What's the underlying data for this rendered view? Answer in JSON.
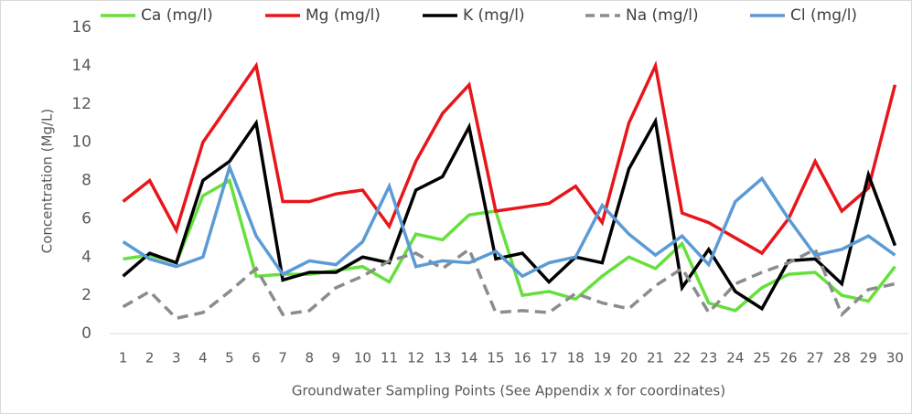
{
  "chart_data": {
    "type": "line",
    "y_label": "Concentration (Mg/L)",
    "x_label": "Groundwater Sampling Points (See Appendix x for coordinates)",
    "categories": [
      "1",
      "2",
      "3",
      "4",
      "5",
      "6",
      "7",
      "8",
      "9",
      "10",
      "11",
      "12",
      "13",
      "14",
      "15",
      "16",
      "17",
      "18",
      "19",
      "20",
      "21",
      "22",
      "23",
      "24",
      "25",
      "26",
      "27",
      "28",
      "29",
      "30"
    ],
    "series": [
      {
        "name": "Ca (mg/l)",
        "color": "#66e03c",
        "dash": false,
        "values": [
          3.9,
          4.1,
          3.7,
          7.2,
          8.0,
          3.0,
          3.1,
          3.1,
          3.3,
          3.5,
          2.7,
          5.2,
          4.9,
          6.2,
          6.4,
          2.0,
          2.2,
          1.8,
          3.0,
          4.0,
          3.4,
          4.7,
          1.6,
          1.2,
          2.4,
          3.1,
          3.2,
          2.0,
          1.7,
          3.5
        ]
      },
      {
        "name": "Mg (mg/l)",
        "color": "#e8161b",
        "dash": false,
        "values": [
          6.9,
          8.0,
          5.4,
          10.0,
          12.0,
          14.0,
          6.9,
          6.9,
          7.3,
          7.5,
          5.6,
          9.0,
          11.5,
          13.0,
          6.4,
          6.6,
          6.8,
          7.7,
          5.8,
          11.0,
          14.0,
          6.3,
          5.8,
          5.0,
          4.2,
          6.0,
          9.0,
          6.4,
          7.6,
          13.0
        ]
      },
      {
        "name": "K (mg/l)",
        "color": "#000000",
        "dash": false,
        "values": [
          3.0,
          4.2,
          3.7,
          8.0,
          9.0,
          11.0,
          2.8,
          3.2,
          3.2,
          4.0,
          3.7,
          7.5,
          8.2,
          10.8,
          3.9,
          4.2,
          2.7,
          4.0,
          3.7,
          8.6,
          11.1,
          2.4,
          4.4,
          2.2,
          1.3,
          3.8,
          3.9,
          2.6,
          8.3,
          4.6
        ]
      },
      {
        "name": "Na (mg/l)",
        "color": "#8c8c8c",
        "dash": true,
        "values": [
          1.4,
          2.2,
          0.8,
          1.1,
          2.2,
          3.4,
          1.0,
          1.2,
          2.4,
          3.0,
          3.8,
          4.2,
          3.4,
          4.4,
          1.1,
          1.2,
          1.1,
          2.1,
          1.6,
          1.3,
          2.5,
          3.4,
          1.1,
          2.6,
          3.2,
          3.7,
          4.4,
          1.0,
          2.3,
          2.6
        ]
      },
      {
        "name": "Cl (mg/l)",
        "color": "#5b9bd5",
        "dash": false,
        "values": [
          4.8,
          3.9,
          3.5,
          4.0,
          8.7,
          5.1,
          3.1,
          3.8,
          3.6,
          4.8,
          7.7,
          3.5,
          3.8,
          3.7,
          4.3,
          3.0,
          3.7,
          4.0,
          6.7,
          5.2,
          4.1,
          5.1,
          3.6,
          6.9,
          8.1,
          6.0,
          4.1,
          4.4,
          5.1,
          4.1
        ]
      }
    ],
    "ylim": [
      0,
      16
    ],
    "yticks": [
      0,
      2,
      4,
      6,
      8,
      10,
      12,
      14,
      16
    ],
    "grid": false,
    "legend": "top"
  }
}
